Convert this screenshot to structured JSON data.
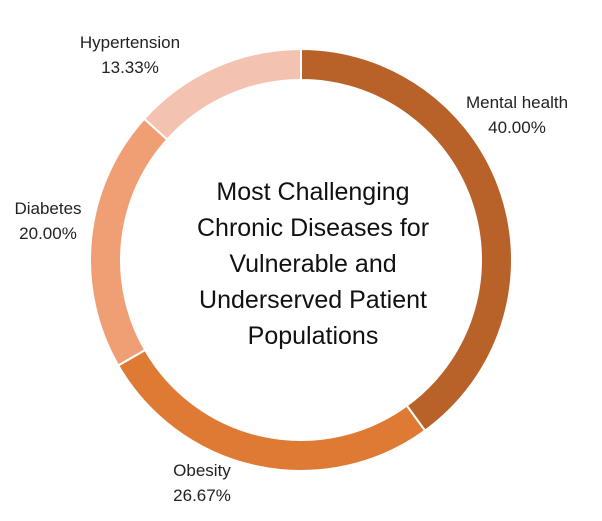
{
  "chart_data": {
    "type": "pie",
    "variant": "donut",
    "title_lines": [
      "Most Challenging",
      "Chronic Diseases for",
      "Vulnerable and",
      "Underserved Patient",
      "Populations"
    ],
    "slices": [
      {
        "label": "Mental health",
        "value": 40.0,
        "value_text": "40.00%",
        "color": "#b8622a"
      },
      {
        "label": "Obesity",
        "value": 26.67,
        "value_text": "26.67%",
        "color": "#df7a35"
      },
      {
        "label": "Diabetes",
        "value": 20.0,
        "value_text": "20.00%",
        "color": "#f09e74"
      },
      {
        "label": "Hypertension",
        "value": 13.33,
        "value_text": "13.33%",
        "color": "#f4c2b0"
      }
    ],
    "start_angle": "12 o'clock",
    "direction": "clockwise"
  }
}
